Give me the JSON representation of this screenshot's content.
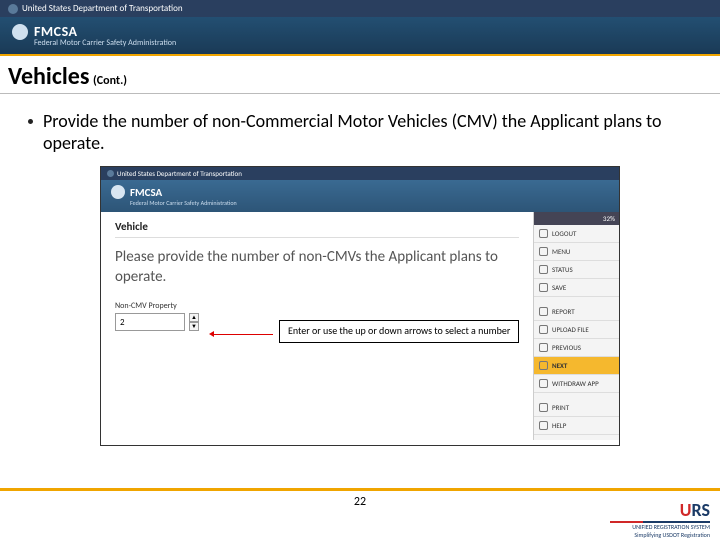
{
  "topbar": {
    "text": "United States Department of Transportation"
  },
  "banner": {
    "title": "FMCSA",
    "subtitle": "Federal Motor Carrier Safety Administration"
  },
  "slide": {
    "title": "Vehicles",
    "cont": "(Cont.)",
    "bullet": "Provide the number of non-Commercial Motor Vehicles (CMV) the Applicant plans to operate.",
    "page_number": "22"
  },
  "screenshot": {
    "topbar": "United States Department of Transportation",
    "banner_title": "FMCSA",
    "banner_sub": "Federal Motor Carrier Safety Administration",
    "section": "Vehicle",
    "prompt": "Please provide the number of non-CMVs the Applicant plans to operate.",
    "field_label": "Non-CMV Property",
    "field_value": "2",
    "callout": "Enter or use the up or down arrows to select a number",
    "progress": "32%",
    "sidebar": {
      "logout": "LOGOUT",
      "menu": "MENU",
      "status": "STATUS",
      "save": "SAVE",
      "report": "REPORT",
      "upload": "UPLOAD FILE",
      "previous": "PREVIOUS",
      "next": "NEXT",
      "withdraw": "WITHDRAW APP",
      "print": "PRINT",
      "help": "HELP"
    }
  },
  "footer": {
    "urs": "URS",
    "urs_sub": "UNIFIED REGISTRATION SYSTEM",
    "reg": "Simplifying USDOT Registration"
  }
}
